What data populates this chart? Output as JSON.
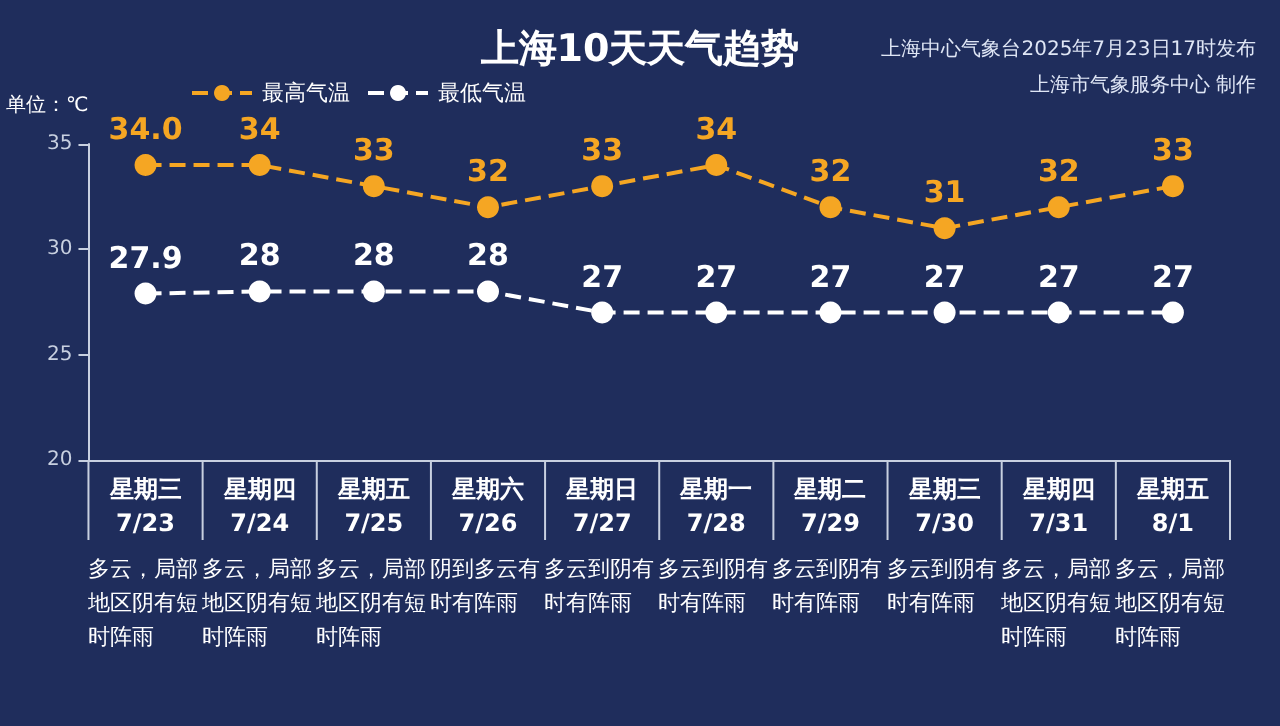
{
  "chart_data": {
    "type": "line",
    "title": "上海10天天气趋势",
    "ylabel": "单位：℃",
    "categories": [
      "星期三\n7/23",
      "星期四\n7/24",
      "星期五\n7/25",
      "星期六\n7/26",
      "星期日\n7/27",
      "星期一\n7/28",
      "星期二\n7/29",
      "星期三\n7/30",
      "星期四\n7/31",
      "星期五\n8/1"
    ],
    "series": [
      {
        "name": "最高气温",
        "color": "#f5a623",
        "values": [
          34.0,
          34,
          33,
          32,
          33,
          34,
          32,
          31,
          32,
          33
        ],
        "value_labels": [
          "34.0",
          "34",
          "33",
          "32",
          "33",
          "34",
          "32",
          "31",
          "32",
          "33"
        ]
      },
      {
        "name": "最低气温",
        "color": "#ffffff",
        "values": [
          27.9,
          28,
          28,
          28,
          27,
          27,
          27,
          27,
          27,
          27
        ],
        "value_labels": [
          "27.9",
          "28",
          "28",
          "28",
          "27",
          "27",
          "27",
          "27",
          "27",
          "27"
        ]
      }
    ],
    "ylim": [
      20,
      35
    ],
    "yticks": [
      20,
      25,
      30,
      35
    ],
    "grid": false,
    "legend": "top left",
    "marker": "circle",
    "line_style": "dashed",
    "annotations": [
      "上海中心气象台2025年7月23日17时发布",
      "上海市气象服务中心 制作",
      "多云，局部地区阴有短时阵雨",
      "多云，局部地区阴有短时阵雨",
      "多云，局部地区阴有短时阵雨",
      "阴到多云有时有阵雨",
      "多云到阴有时有阵雨",
      "多云到阴有时有阵雨",
      "多云到阴有时有阵雨",
      "多云到阴有时有阵雨",
      "多云，局部地区阴有短时阵雨",
      "多云，局部地区阴有短时阵雨"
    ]
  }
}
